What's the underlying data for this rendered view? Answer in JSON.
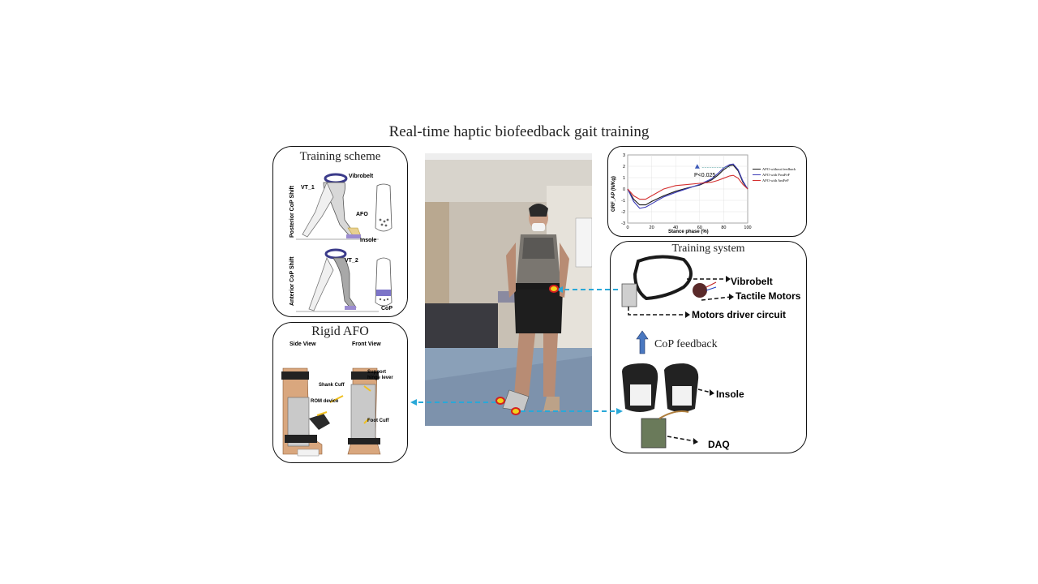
{
  "title": "Real-time haptic biofeedback gait training",
  "training_scheme": {
    "title": "Training scheme",
    "posterior_label": "Posterior CoP Shift",
    "anterior_label": "Anterior CoP Shift",
    "vibrobelt": "Vibrobelt",
    "vt1": "VT_1",
    "vt2": "VT_2",
    "afo": "AFO",
    "insole": "Insole",
    "cop": "CoP"
  },
  "rigid_afo": {
    "title": "Rigid AFO",
    "side_view": "Side View",
    "front_view": "Front View",
    "shank_cuff": "Shank Cuff",
    "support_hinge": "Support hinge lever",
    "rom_device": "ROM device",
    "foot_cuff": "Foot Cuff"
  },
  "training_system": {
    "title": "Training system",
    "vibrobelt": "Vibrobelt",
    "tactile_motors": "Tactile Motors",
    "motors_driver": "Motors driver circuit",
    "cop_feedback": "CoP feedback",
    "insole": "Insole",
    "daq": "DAQ"
  },
  "colors": {
    "arrow_dashed": "#29a8d8",
    "feedback_arrow": "#4a78c0",
    "marker_red": "#d42020",
    "marker_yellow": "#f2d21b",
    "belt_purple": "#3b3b8a",
    "afo_yellow": "#f0c020"
  },
  "chart_data": {
    "type": "line",
    "xlabel": "Stance phase (%)",
    "ylabel": "GRF_AP (N/Kg)",
    "xlim": [
      0,
      100
    ],
    "ylim": [
      -3,
      3
    ],
    "xticks": [
      0,
      20,
      40,
      60,
      80,
      100
    ],
    "yticks": [
      3,
      2,
      1,
      0,
      -1,
      -2,
      -3
    ],
    "grid": true,
    "legend_position": "right",
    "annotation": "P<0.025",
    "series": [
      {
        "name": "AFO without feedback",
        "color": "#1a1a1a",
        "x": [
          0,
          5,
          10,
          15,
          20,
          30,
          40,
          50,
          60,
          70,
          75,
          80,
          85,
          88,
          92,
          96,
          100
        ],
        "y": [
          0,
          -0.9,
          -1.4,
          -1.4,
          -1.1,
          -0.6,
          -0.2,
          0.1,
          0.35,
          0.8,
          1.2,
          1.7,
          2.05,
          2.1,
          1.6,
          0.6,
          0
        ]
      },
      {
        "name": "AFO with PostFeF",
        "color": "#3d3db8",
        "x": [
          0,
          5,
          10,
          15,
          20,
          30,
          40,
          50,
          60,
          70,
          75,
          80,
          85,
          88,
          92,
          96,
          100
        ],
        "y": [
          0,
          -1.1,
          -1.7,
          -1.6,
          -1.3,
          -0.7,
          -0.3,
          0.05,
          0.4,
          0.9,
          1.35,
          1.85,
          2.15,
          2.2,
          1.7,
          0.7,
          0
        ]
      },
      {
        "name": "AFO with AntFeF",
        "color": "#d43030",
        "x": [
          0,
          5,
          10,
          15,
          20,
          30,
          40,
          50,
          60,
          70,
          75,
          80,
          85,
          88,
          92,
          96,
          100
        ],
        "y": [
          0,
          -0.6,
          -0.9,
          -0.9,
          -0.6,
          0.0,
          0.3,
          0.4,
          0.5,
          0.6,
          0.75,
          0.95,
          1.15,
          1.2,
          0.95,
          0.4,
          0
        ]
      }
    ]
  }
}
